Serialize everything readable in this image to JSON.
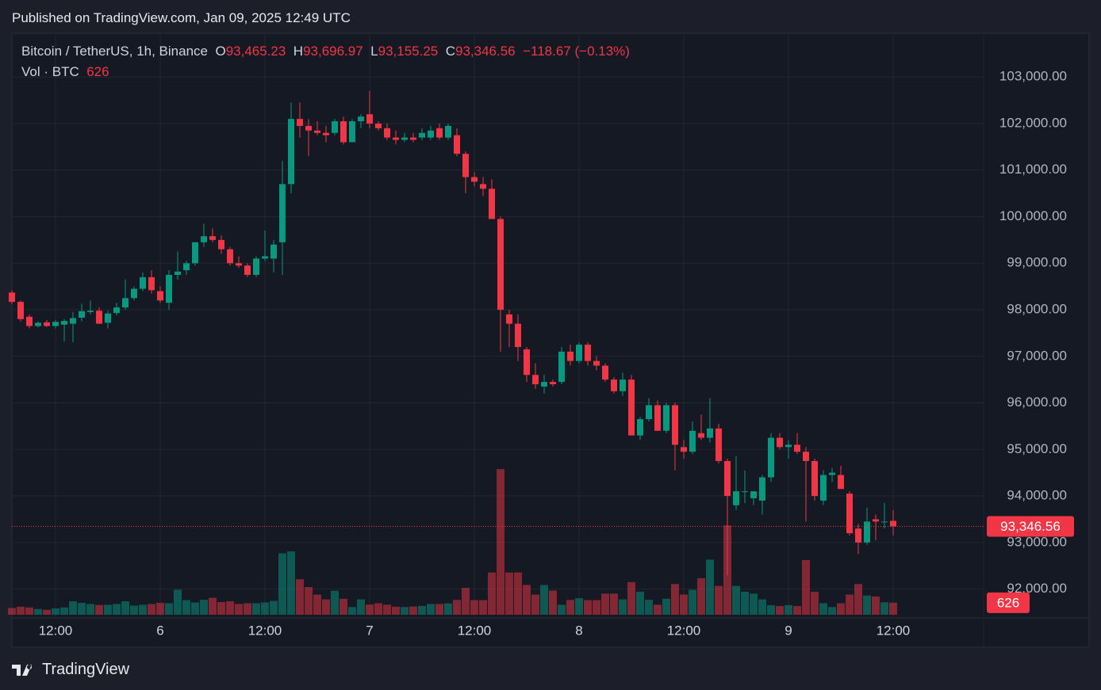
{
  "header": {
    "published": "Published on TradingView.com, Jan 09, 2025 12:49 UTC"
  },
  "footer": {
    "brand": "TradingView"
  },
  "chart_data": {
    "type": "candlestick",
    "legend": {
      "symbol": "Bitcoin / TetherUS, 1h, Binance",
      "o_key": "O",
      "open": "93,465.23",
      "h_key": "H",
      "high": "93,696.97",
      "l_key": "L",
      "low": "93,155.25",
      "c_key": "C",
      "close": "93,346.56",
      "change": "−118.67 (−0.13%)",
      "vol_name": "Vol · BTC",
      "vol": "626"
    },
    "categories": [
      null,
      null,
      null,
      null,
      null,
      "12:00",
      null,
      null,
      null,
      null,
      null,
      null,
      null,
      null,
      null,
      null,
      null,
      "6",
      null,
      null,
      null,
      null,
      null,
      null,
      null,
      null,
      null,
      null,
      null,
      "12:00",
      null,
      null,
      null,
      null,
      null,
      null,
      null,
      null,
      null,
      null,
      null,
      "7",
      null,
      null,
      null,
      null,
      null,
      null,
      null,
      null,
      null,
      null,
      null,
      "12:00",
      null,
      null,
      null,
      null,
      null,
      null,
      null,
      null,
      null,
      null,
      null,
      "8",
      null,
      null,
      null,
      null,
      null,
      null,
      null,
      null,
      null,
      null,
      null,
      "12:00",
      null,
      null,
      null,
      null,
      null,
      null,
      null,
      null,
      null,
      null,
      null,
      "9",
      null,
      null,
      null,
      null,
      null,
      null,
      null,
      null,
      null,
      null,
      null,
      "12:00"
    ],
    "candles": {
      "open": [
        98370,
        98170,
        97850,
        97650,
        97730,
        97650,
        97680,
        97700,
        97830,
        97950,
        97980,
        97720,
        97930,
        98050,
        98250,
        98450,
        98700,
        98400,
        98150,
        98750,
        98850,
        99000,
        99450,
        99580,
        99500,
        99300,
        99000,
        98950,
        98750,
        99100,
        99100,
        99450,
        100700,
        102100,
        101950,
        101850,
        101800,
        101800,
        102050,
        101600,
        102050,
        102200,
        102000,
        101900,
        101700,
        101650,
        101700,
        101700,
        101700,
        101900,
        101700,
        101750,
        101350,
        100850,
        100700,
        100600,
        99950,
        97900,
        97700,
        97150,
        96600,
        96350,
        96450,
        96450,
        97100,
        96900,
        97250,
        96900,
        96800,
        96500,
        96250,
        96500,
        95300,
        95650,
        95950,
        95400,
        95950,
        95050,
        94950,
        95350,
        95250,
        95450,
        94750,
        93800,
        94100,
        93950,
        93900,
        94400,
        95250,
        95050,
        95100,
        94950,
        94750,
        93900,
        94450,
        94450,
        94050,
        93300,
        93000,
        93500,
        93450,
        93465.23
      ],
      "high": [
        98420,
        98200,
        97900,
        97750,
        97780,
        97780,
        97800,
        97950,
        98130,
        98200,
        98050,
        97980,
        98150,
        98650,
        98500,
        98800,
        98850,
        98500,
        98850,
        99250,
        99050,
        99450,
        99850,
        99750,
        99600,
        99350,
        99150,
        99000,
        99150,
        99700,
        99500,
        101200,
        102450,
        102450,
        102100,
        102050,
        101950,
        102100,
        102150,
        102100,
        102200,
        102700,
        102050,
        102000,
        101850,
        101800,
        101800,
        101900,
        101950,
        102000,
        102000,
        101900,
        101400,
        100950,
        100850,
        100800,
        100000,
        98000,
        97900,
        97200,
        96850,
        96600,
        96500,
        97200,
        97250,
        97300,
        97300,
        97000,
        96850,
        96550,
        96650,
        96600,
        95700,
        96100,
        96050,
        96000,
        96000,
        95200,
        95600,
        95750,
        96100,
        95550,
        94800,
        94850,
        94550,
        94100,
        94450,
        95350,
        95350,
        95200,
        95350,
        95050,
        94800,
        94550,
        94600,
        94650,
        94100,
        93400,
        93750,
        93600,
        93850,
        93696.97
      ],
      "low": [
        98120,
        97750,
        97600,
        97620,
        97630,
        97600,
        97320,
        97300,
        97750,
        97900,
        97700,
        97600,
        97880,
        98000,
        98200,
        98400,
        98350,
        98150,
        98000,
        98650,
        98750,
        98950,
        99350,
        99450,
        99200,
        98950,
        98900,
        98700,
        98700,
        99050,
        98800,
        98750,
        100500,
        101700,
        101300,
        101750,
        101600,
        101750,
        101550,
        101600,
        101900,
        101900,
        101850,
        101650,
        101550,
        101600,
        101600,
        101650,
        101650,
        101650,
        101650,
        101300,
        100500,
        100650,
        100450,
        99950,
        97100,
        97200,
        96900,
        96450,
        96300,
        96200,
        96350,
        96400,
        96800,
        96850,
        96800,
        96700,
        96450,
        96200,
        96150,
        95300,
        95200,
        95600,
        95400,
        95350,
        94550,
        94800,
        94900,
        95200,
        95150,
        94700,
        92300,
        93700,
        93850,
        93800,
        93600,
        94300,
        95000,
        94800,
        94900,
        93450,
        93900,
        93800,
        94300,
        94150,
        93150,
        92750,
        92950,
        93050,
        93300,
        93155.25
      ],
      "close": [
        98170,
        97800,
        97650,
        97720,
        97650,
        97740,
        97760,
        97820,
        97970,
        97980,
        97700,
        97920,
        98050,
        98250,
        98450,
        98700,
        98420,
        98200,
        98750,
        98820,
        99000,
        99450,
        99580,
        99500,
        99300,
        99000,
        98950,
        98750,
        99100,
        99150,
        99400,
        100700,
        102100,
        101950,
        101850,
        101800,
        101750,
        102050,
        101600,
        102050,
        102150,
        102000,
        101900,
        101700,
        101650,
        101700,
        101650,
        101800,
        101850,
        101700,
        101950,
        101350,
        100850,
        100750,
        100600,
        99950,
        98000,
        97700,
        97200,
        96600,
        96400,
        96450,
        96400,
        97100,
        96900,
        97250,
        96900,
        96800,
        96500,
        96250,
        96500,
        95300,
        95650,
        95950,
        95400,
        95950,
        95100,
        94950,
        95400,
        95250,
        95450,
        94750,
        94000,
        94100,
        94100,
        94100,
        94400,
        95250,
        95050,
        95100,
        94950,
        94750,
        94000,
        94450,
        94500,
        94150,
        93200,
        93000,
        93450,
        93450,
        93450,
        93346.56
      ],
      "up_color": "#089981",
      "down_color": "#f23645"
    },
    "volume": {
      "values": [
        350,
        420,
        380,
        300,
        260,
        330,
        380,
        700,
        620,
        560,
        510,
        520,
        560,
        700,
        480,
        520,
        560,
        620,
        600,
        1300,
        760,
        640,
        780,
        880,
        660,
        700,
        560,
        600,
        600,
        640,
        720,
        3200,
        3300,
        1850,
        1440,
        1050,
        800,
        1250,
        830,
        400,
        800,
        530,
        600,
        520,
        420,
        400,
        430,
        460,
        560,
        560,
        590,
        770,
        1400,
        760,
        760,
        2200,
        7580,
        2200,
        2200,
        1550,
        1050,
        1550,
        1260,
        520,
        770,
        860,
        760,
        760,
        1100,
        1100,
        800,
        1700,
        1200,
        780,
        520,
        830,
        1600,
        1050,
        1300,
        1900,
        2870,
        1500,
        4650,
        1500,
        1200,
        1100,
        800,
        500,
        450,
        500,
        450,
        2850,
        1200,
        600,
        400,
        600,
        1050,
        1600,
        1000,
        950,
        650,
        626
      ],
      "ylim": [
        0,
        28000
      ],
      "up_color": "rgba(8,153,129,0.5)",
      "down_color": "rgba(242,54,69,0.5)"
    },
    "ylim": [
      91380,
      103940
    ],
    "yticks": [
      {
        "value": 92000,
        "label": "92,000.00"
      },
      {
        "value": 93000,
        "label": "93,000.00"
      },
      {
        "value": 94000,
        "label": "94,000.00"
      },
      {
        "value": 95000,
        "label": "95,000.00"
      },
      {
        "value": 96000,
        "label": "96,000.00"
      },
      {
        "value": 97000,
        "label": "97,000.00"
      },
      {
        "value": 98000,
        "label": "98,000.00"
      },
      {
        "value": 99000,
        "label": "99,000.00"
      },
      {
        "value": 100000,
        "label": "100,000.00"
      },
      {
        "value": 101000,
        "label": "101,000.00"
      },
      {
        "value": 102000,
        "label": "102,000.00"
      },
      {
        "value": 103000,
        "label": "103,000.00"
      }
    ],
    "last_price": {
      "value": 93346.56,
      "label": "93,346.56"
    },
    "last_volume": {
      "value": 626,
      "label": "626"
    },
    "grid": true
  }
}
